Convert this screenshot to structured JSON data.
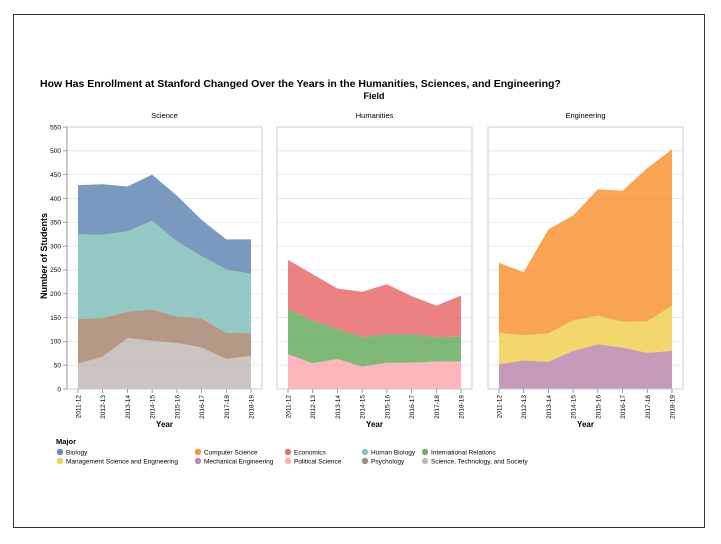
{
  "chart_data": {
    "type": "area",
    "title": "How Has Enrollment at Stanford Changed Over the Years in the Humanities, Sciences, and Engineering?",
    "facet_title": "Field",
    "xlabel": "Year",
    "ylabel": "Number of Students",
    "ylim": [
      0,
      550
    ],
    "yticks": [
      0,
      50,
      100,
      150,
      200,
      250,
      300,
      350,
      400,
      450,
      500,
      550
    ],
    "stacked": true,
    "grid": true,
    "x": [
      "2011-12",
      "2012-13",
      "2013-14",
      "2014-15",
      "2015-16",
      "2016-17",
      "2017-18",
      "2018-19"
    ],
    "legend_title": "Major",
    "legend_position": "bottom-left",
    "legend": [
      {
        "name": "Biology",
        "color": "#4c78a8"
      },
      {
        "name": "Computer Science",
        "color": "#f58518"
      },
      {
        "name": "Economics",
        "color": "#e45756"
      },
      {
        "name": "Human Biology",
        "color": "#72b7b2"
      },
      {
        "name": "International Relations",
        "color": "#54a24b"
      },
      {
        "name": "Management Science and Engineering",
        "color": "#eeca3b"
      },
      {
        "name": "Mechanical Engineering",
        "color": "#b279a2"
      },
      {
        "name": "Political Science",
        "color": "#ff9da6"
      },
      {
        "name": "Psychology",
        "color": "#9d755d"
      },
      {
        "name": "Science, Technology, and Society",
        "color": "#bab0ac"
      }
    ],
    "panels": [
      {
        "title": "Science",
        "series": [
          {
            "name": "Science, Technology, and Society",
            "color": "#bab0ac",
            "values": [
              53,
              68,
              107,
              101,
              97,
              87,
              63,
              70
            ]
          },
          {
            "name": "Psychology",
            "color": "#9d755d",
            "values": [
              94,
              81,
              55,
              66,
              55,
              61,
              55,
              47
            ]
          },
          {
            "name": "Human Biology",
            "color": "#72b7b2",
            "values": [
              178,
              175,
              169,
              186,
              158,
              131,
              133,
              125
            ]
          },
          {
            "name": "Biology",
            "color": "#4c78a8",
            "values": [
              103,
              106,
              94,
              97,
              96,
              76,
              63,
              72
            ]
          }
        ]
      },
      {
        "title": "Humanities",
        "series": [
          {
            "name": "Political Science",
            "color": "#ff9da6",
            "values": [
              73,
              54,
              63,
              47,
              55,
              55,
              58,
              58
            ]
          },
          {
            "name": "International Relations",
            "color": "#54a24b",
            "values": [
              95,
              90,
              63,
              62,
              60,
              60,
              51,
              52
            ]
          },
          {
            "name": "Economics",
            "color": "#e45756",
            "values": [
              103,
              97,
              85,
              95,
              105,
              80,
              66,
              86
            ]
          }
        ]
      },
      {
        "title": "Engineering",
        "series": [
          {
            "name": "Mechanical Engineering",
            "color": "#b279a2",
            "values": [
              52,
              60,
              57,
              80,
              94,
              87,
              76,
              80
            ]
          },
          {
            "name": "Management Science and Engineering",
            "color": "#eeca3b",
            "values": [
              66,
              53,
              60,
              64,
              60,
              54,
              66,
              95
            ]
          },
          {
            "name": "Computer Science",
            "color": "#f58518",
            "values": [
              147,
              132,
              218,
              220,
              265,
              275,
              322,
              328
            ]
          }
        ]
      }
    ]
  }
}
